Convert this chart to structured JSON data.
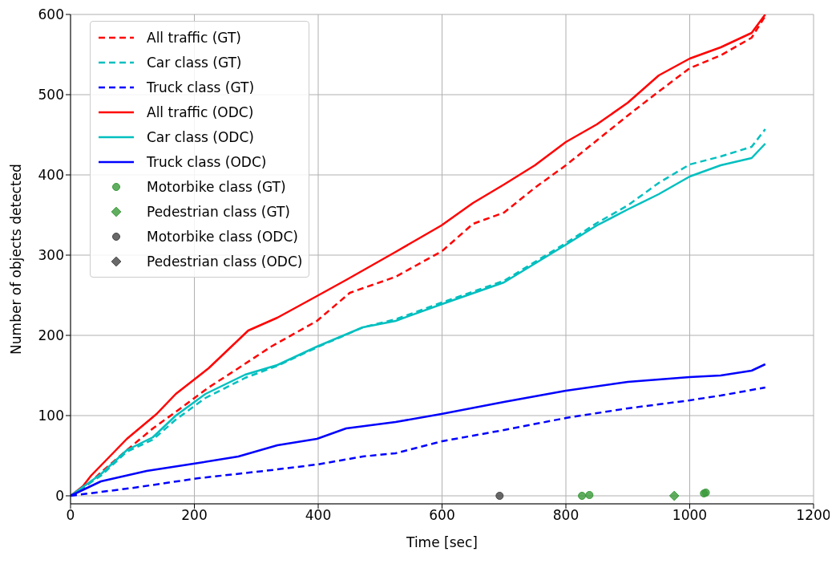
{
  "chart_data": {
    "type": "line",
    "xlabel": "Time [sec]",
    "ylabel": "Number of objects detected",
    "xlim": [
      0,
      1200
    ],
    "ylim": [
      -10,
      600
    ],
    "xticks": [
      0,
      200,
      400,
      600,
      800,
      1000,
      1200
    ],
    "yticks": [
      0,
      100,
      200,
      300,
      400,
      500,
      600
    ],
    "grid": true,
    "legend": "top left",
    "series": [
      {
        "name": "All traffic (GT)",
        "color": "#ff0000",
        "line_style": "dashed",
        "x": [
          0,
          20,
          49,
          91,
          133,
          176,
          223,
          271,
          324,
          398,
          451,
          525,
          600,
          650,
          700,
          750,
          800,
          850,
          900,
          950,
          1000,
          1050,
          1100,
          1122
        ],
        "values": [
          0,
          8,
          29,
          57,
          84,
          108,
          135,
          159,
          186,
          218,
          253,
          273,
          305,
          339,
          353,
          384,
          412,
          443,
          474,
          504,
          533,
          549,
          571,
          598
        ]
      },
      {
        "name": "Car class (GT)",
        "color": "#00bfbf",
        "line_style": "dashed",
        "x": [
          0,
          49,
          91,
          133,
          170,
          218,
          282,
          334,
          398,
          472,
          525,
          600,
          700,
          800,
          850,
          900,
          950,
          1000,
          1050,
          1100,
          1122
        ],
        "values": [
          0,
          25,
          55,
          70,
          95,
          122,
          147,
          162,
          185,
          210,
          220,
          241,
          268,
          315,
          340,
          362,
          390,
          413,
          423,
          435,
          457
        ]
      },
      {
        "name": "Truck class (GT)",
        "color": "#0000ff",
        "line_style": "dashed",
        "x": [
          0,
          102,
          207,
          313,
          398,
          472,
          525,
          600,
          700,
          800,
          900,
          1000,
          1050,
          1122
        ],
        "values": [
          0,
          10,
          22,
          31,
          39,
          49,
          53,
          68,
          82,
          97,
          109,
          119,
          125,
          135
        ]
      },
      {
        "name": "All traffic (ODC)",
        "color": "#ff0000",
        "line_style": "solid",
        "x": [
          0,
          20,
          33,
          91,
          139,
          170,
          223,
          287,
          334,
          398,
          445,
          525,
          599,
          650,
          700,
          750,
          800,
          850,
          900,
          950,
          1000,
          1050,
          1100,
          1122
        ],
        "values": [
          0,
          12,
          25,
          71,
          102,
          127,
          159,
          206,
          222,
          249,
          269,
          304,
          337,
          365,
          388,
          412,
          441,
          463,
          490,
          524,
          545,
          559,
          577,
          600
        ]
      },
      {
        "name": "Car class (ODC)",
        "color": "#00bfbf",
        "line_style": "solid",
        "x": [
          0,
          49,
          91,
          133,
          170,
          218,
          282,
          334,
          398,
          472,
          525,
          600,
          700,
          800,
          850,
          900,
          950,
          1000,
          1050,
          1100,
          1122
        ],
        "values": [
          0,
          27,
          57,
          73,
          100,
          127,
          151,
          163,
          186,
          210,
          218,
          239,
          266,
          313,
          337,
          357,
          376,
          398,
          412,
          421,
          439
        ]
      },
      {
        "name": "Truck class (ODC)",
        "color": "#0000ff",
        "line_style": "solid",
        "x": [
          0,
          49,
          123,
          207,
          271,
          334,
          398,
          445,
          525,
          599,
          700,
          800,
          900,
          1000,
          1050,
          1100,
          1122
        ],
        "values": [
          0,
          18,
          31,
          41,
          49,
          63,
          71,
          84,
          92,
          102,
          117,
          131,
          142,
          148,
          150,
          156,
          164
        ]
      },
      {
        "name": "Motorbike class (GT)",
        "type": "scatter",
        "marker": "circle",
        "color": "#3a9a3a",
        "x": [
          826,
          838,
          1023,
          1026
        ],
        "values": [
          0,
          1,
          3,
          4
        ]
      },
      {
        "name": "Pedestrian class (GT)",
        "type": "scatter",
        "marker": "diamond",
        "color": "#3a9a3a",
        "x": [
          975
        ],
        "values": [
          0
        ]
      },
      {
        "name": "Motorbike class (ODC)",
        "type": "scatter",
        "marker": "circle",
        "color": "#444444",
        "x": [
          693
        ],
        "values": [
          0
        ]
      },
      {
        "name": "Pedestrian class (ODC)",
        "type": "scatter",
        "marker": "diamond",
        "color": "#444444"
      }
    ]
  }
}
